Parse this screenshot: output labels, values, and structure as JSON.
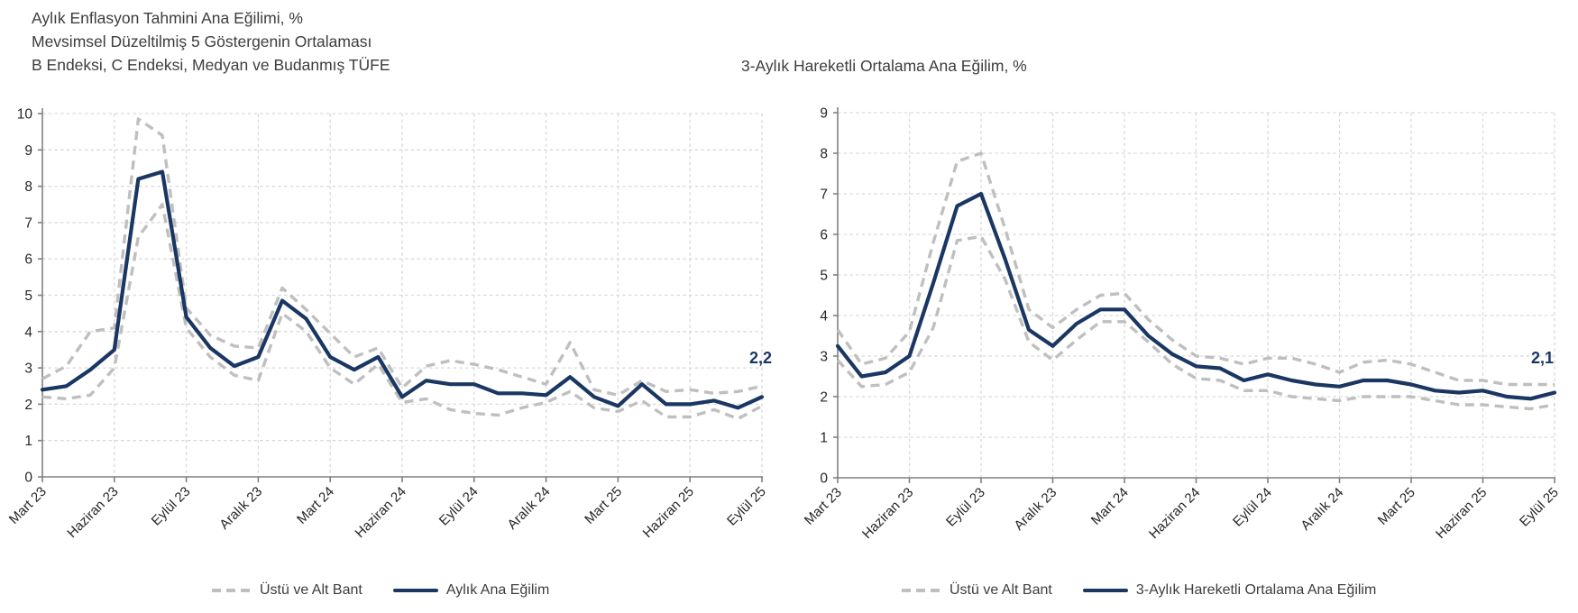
{
  "colors": {
    "main_line": "#1a3763",
    "band_line": "#bfbfbf",
    "grid_line": "#d9d9d9",
    "axis_line": "#808080",
    "text": "#3d3d3d"
  },
  "chart_data": [
    {
      "id": "monthly-trend",
      "type": "line",
      "title_lines": [
        "Aylık Enflasyon Tahmini Ana Eğilimi, %",
        "Mevsimsel Düzeltilmiş 5 Göstergenin Ortalaması",
        "B Endeksi, C Endeksi, Medyan ve Budanmış TÜFE"
      ],
      "ylim": [
        0,
        10
      ],
      "y_tick_step": 1,
      "x_label_every": 3,
      "grid": true,
      "legend_position": "bottom",
      "end_label": "2,2",
      "categories": [
        "Mart 23",
        "Nisan 23",
        "Mayıs 23",
        "Haziran 23",
        "Temmuz 23",
        "Ağustos 23",
        "Eylül 23",
        "Ekim 23",
        "Kasım 23",
        "Aralık 23",
        "Ocak 24",
        "Şubat 24",
        "Mart 24",
        "Nisan 24",
        "Mayıs 24",
        "Haziran 24",
        "Temmuz 24",
        "Ağustos 24",
        "Eylül 24",
        "Ekim 24",
        "Kasım 24",
        "Aralık 24",
        "Ocak 25",
        "Şubat 25",
        "Mart 25",
        "Nisan 25",
        "Mayıs 25",
        "Haziran 25",
        "Temmuz 25",
        "Ağustos 25",
        "Eylül 25"
      ],
      "series": [
        {
          "name": "Üst Bant",
          "role": "band",
          "values": [
            2.7,
            3.05,
            4.0,
            4.1,
            9.85,
            9.4,
            4.65,
            3.9,
            3.6,
            3.55,
            5.2,
            4.6,
            3.95,
            3.3,
            3.55,
            2.45,
            3.05,
            3.2,
            3.1,
            2.95,
            2.75,
            2.55,
            3.7,
            2.4,
            2.25,
            2.65,
            2.35,
            2.4,
            2.3,
            2.35,
            2.5
          ]
        },
        {
          "name": "Alt Bant",
          "role": "band",
          "values": [
            2.2,
            2.15,
            2.25,
            3.0,
            6.6,
            7.5,
            4.1,
            3.3,
            2.8,
            2.65,
            4.5,
            4.0,
            3.0,
            2.55,
            3.1,
            2.05,
            2.15,
            1.85,
            1.75,
            1.7,
            1.9,
            2.05,
            2.35,
            1.9,
            1.8,
            2.1,
            1.65,
            1.65,
            1.85,
            1.6,
            1.95
          ]
        },
        {
          "name": "Aylık Ana Eğilim",
          "role": "main",
          "values": [
            2.4,
            2.5,
            2.95,
            3.5,
            8.2,
            8.4,
            4.4,
            3.55,
            3.05,
            3.3,
            4.85,
            4.35,
            3.3,
            2.95,
            3.3,
            2.2,
            2.65,
            2.55,
            2.55,
            2.3,
            2.3,
            2.25,
            2.75,
            2.2,
            1.95,
            2.55,
            2.0,
            2.0,
            2.1,
            1.9,
            2.2
          ]
        }
      ],
      "legend": [
        {
          "label": "Üstü ve Alt Bant",
          "style": "dashed"
        },
        {
          "label": "Aylık Ana Eğilim",
          "style": "solid"
        }
      ]
    },
    {
      "id": "three-month-moving-average-trend",
      "type": "line",
      "title_lines": [
        "3-Aylık Hareketli Ortalama Ana Eğilim, %"
      ],
      "ylim": [
        0,
        9
      ],
      "y_tick_step": 1,
      "x_label_every": 3,
      "grid": true,
      "legend_position": "bottom",
      "end_label": "2,1",
      "categories": [
        "Mart 23",
        "Nisan 23",
        "Mayıs 23",
        "Haziran 23",
        "Temmuz 23",
        "Ağustos 23",
        "Eylül 23",
        "Ekim 23",
        "Kasım 23",
        "Aralık 23",
        "Ocak 24",
        "Şubat 24",
        "Mart 24",
        "Nisan 24",
        "Mayıs 24",
        "Haziran 24",
        "Temmuz 24",
        "Ağustos 24",
        "Eylül 24",
        "Ekim 24",
        "Kasım 24",
        "Aralık 24",
        "Ocak 25",
        "Şubat 25",
        "Mart 25",
        "Nisan 25",
        "Mayıs 25",
        "Haziran 25",
        "Temmuz 25",
        "Ağustos 25",
        "Eylül 25"
      ],
      "series": [
        {
          "name": "Üst Bant",
          "role": "band",
          "values": [
            3.65,
            2.8,
            2.95,
            3.6,
            5.8,
            7.8,
            8.0,
            6.15,
            4.15,
            3.7,
            4.15,
            4.5,
            4.55,
            3.9,
            3.4,
            3.0,
            2.95,
            2.8,
            2.95,
            2.95,
            2.8,
            2.6,
            2.85,
            2.9,
            2.8,
            2.6,
            2.4,
            2.4,
            2.3,
            2.3,
            2.3
          ]
        },
        {
          "name": "Alt Bant",
          "role": "band",
          "values": [
            2.9,
            2.25,
            2.3,
            2.6,
            3.7,
            5.85,
            5.95,
            4.9,
            3.35,
            2.9,
            3.4,
            3.85,
            3.85,
            3.35,
            2.8,
            2.45,
            2.4,
            2.15,
            2.15,
            2.0,
            1.95,
            1.9,
            2.0,
            2.0,
            2.0,
            1.9,
            1.8,
            1.8,
            1.75,
            1.7,
            1.8
          ]
        },
        {
          "name": "3-Aylık Hareketli Ortalama Ana Eğilim",
          "role": "main",
          "values": [
            3.25,
            2.5,
            2.6,
            3.0,
            4.8,
            6.7,
            7.0,
            5.4,
            3.65,
            3.25,
            3.8,
            4.15,
            4.15,
            3.5,
            3.05,
            2.75,
            2.7,
            2.4,
            2.55,
            2.4,
            2.3,
            2.25,
            2.4,
            2.4,
            2.3,
            2.15,
            2.1,
            2.15,
            2.0,
            1.95,
            2.1
          ]
        }
      ],
      "legend": [
        {
          "label": "Üstü ve Alt Bant",
          "style": "dashed"
        },
        {
          "label": "3-Aylık Hareketli Ortalama Ana Eğilim",
          "style": "solid"
        }
      ]
    }
  ]
}
